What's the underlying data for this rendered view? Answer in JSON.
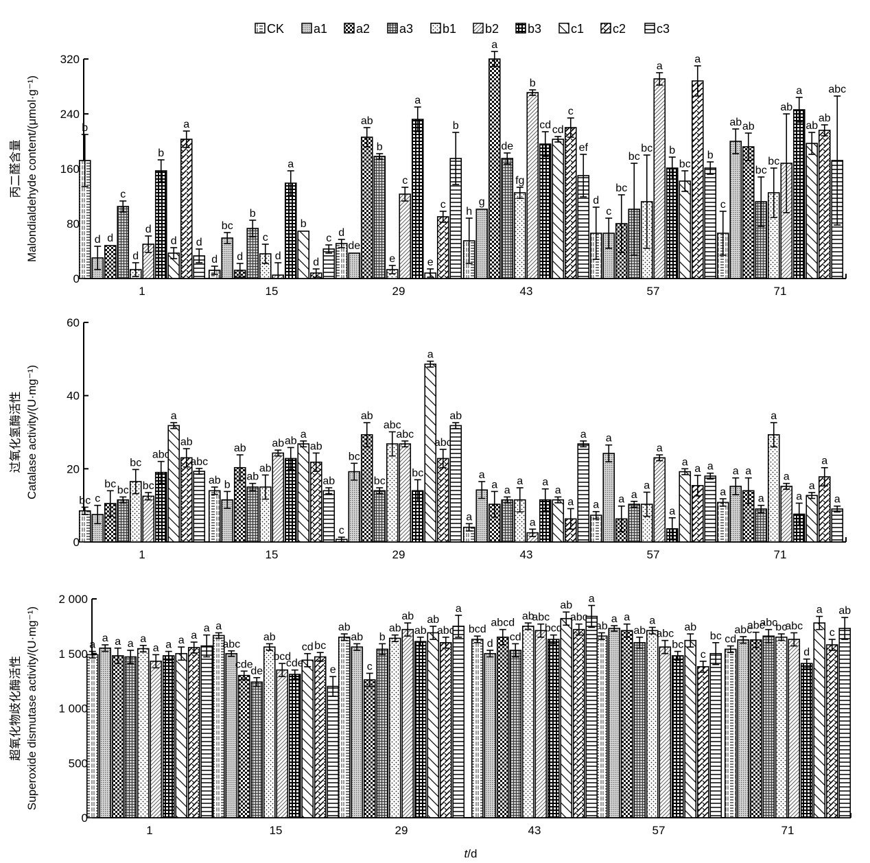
{
  "legend": [
    "CK",
    "a1",
    "a2",
    "a3",
    "b1",
    "b2",
    "b3",
    "c1",
    "c2",
    "c3"
  ],
  "patterns": [
    "hdash",
    "fine-dots",
    "checker",
    "fine-grid",
    "dots",
    "diag-fine",
    "cross-grid",
    "diag-back",
    "diag-hatch",
    "hlines"
  ],
  "xlabel": "t/d",
  "chart_data": [
    {
      "type": "bar",
      "title": "",
      "ylabel_cn": "丙二醛含量",
      "ylabel": "Malondialdehyde content/(μmol·g⁻¹)",
      "xlabel": "t/d",
      "categories": [
        "1",
        "15",
        "29",
        "43",
        "57",
        "71"
      ],
      "ylim": [
        0,
        320
      ],
      "yticks": [
        0,
        80,
        160,
        240,
        320
      ],
      "ytick_labels": [
        "0",
        "80",
        "160",
        "240",
        "320"
      ],
      "grid": false,
      "legend": "top",
      "series": [
        {
          "name": "CK",
          "values": [
            172,
            12,
            51,
            55,
            66,
            66
          ],
          "err": [
            38,
            6,
            6,
            33,
            38,
            32
          ],
          "labels": [
            "b",
            "d",
            "d",
            "h",
            "d",
            "c"
          ]
        },
        {
          "name": "a1",
          "values": [
            30,
            59,
            37,
            101,
            66,
            200
          ],
          "err": [
            17,
            8,
            0,
            0,
            22,
            18
          ],
          "labels": [
            "d",
            "bc",
            "de",
            "g",
            "c",
            "ab"
          ]
        },
        {
          "name": "a2",
          "values": [
            48,
            12,
            206,
            320,
            80,
            192
          ],
          "err": [
            0,
            10,
            14,
            11,
            42,
            20
          ],
          "labels": [
            "d",
            "d",
            "ab",
            "a",
            "bc",
            "ab"
          ]
        },
        {
          "name": "a3",
          "values": [
            105,
            73,
            178,
            175,
            101,
            112
          ],
          "err": [
            8,
            12,
            4,
            8,
            67,
            36
          ],
          "labels": [
            "c",
            "b",
            "b",
            "de",
            "bc",
            "bc"
          ]
        },
        {
          "name": "b1",
          "values": [
            13,
            36,
            13,
            125,
            112,
            125
          ],
          "err": [
            10,
            14,
            6,
            8,
            68,
            36
          ],
          "labels": [
            "d",
            "c",
            "e",
            "fg",
            "bc",
            "bc"
          ]
        },
        {
          "name": "b2",
          "values": [
            50,
            5,
            123,
            271,
            291,
            168
          ],
          "err": [
            12,
            18,
            10,
            4,
            9,
            72
          ],
          "labels": [
            "d",
            "d",
            "c",
            "b",
            "a",
            "ab"
          ]
        },
        {
          "name": "b3",
          "values": [
            157,
            139,
            232,
            196,
            161,
            246
          ],
          "err": [
            16,
            18,
            18,
            18,
            16,
            18
          ],
          "labels": [
            "b",
            "a",
            "a",
            "cd",
            "b",
            "a"
          ]
        },
        {
          "name": "c1",
          "values": [
            37,
            69,
            8,
            203,
            142,
            197
          ],
          "err": [
            8,
            0,
            6,
            4,
            15,
            16
          ],
          "labels": [
            "d",
            "b",
            "e",
            "cd",
            "bc",
            "ab"
          ]
        },
        {
          "name": "c2",
          "values": [
            203,
            8,
            90,
            220,
            288,
            216
          ],
          "err": [
            12,
            6,
            8,
            14,
            22,
            8
          ],
          "labels": [
            "a",
            "d",
            "c",
            "c",
            "a",
            "ab"
          ]
        },
        {
          "name": "c3",
          "values": [
            33,
            43,
            175,
            150,
            161,
            172
          ],
          "err": [
            10,
            6,
            38,
            31,
            9,
            94
          ],
          "labels": [
            "d",
            "c",
            "b",
            "ef",
            "b",
            "abc"
          ]
        }
      ]
    },
    {
      "type": "bar",
      "title": "",
      "ylabel_cn": "过氧化氢酶活性",
      "ylabel": "Catalase activity/(U·mg⁻¹)",
      "xlabel": "t/d",
      "categories": [
        "1",
        "15",
        "29",
        "43",
        "57",
        "71"
      ],
      "ylim": [
        0,
        60
      ],
      "yticks": [
        0,
        20,
        40,
        60
      ],
      "ytick_labels": [
        "0",
        "20",
        "40",
        "60"
      ],
      "grid": false,
      "legend": "top",
      "series": [
        {
          "name": "CK",
          "values": [
            8.5,
            14.0,
            0.7,
            4.0,
            7.3,
            10.8
          ],
          "err": [
            1.0,
            1.0,
            0.6,
            1.0,
            1.0,
            1.0
          ],
          "labels": [
            "bc",
            "ab",
            "c",
            "a",
            "a",
            "a"
          ]
        },
        {
          "name": "a1",
          "values": [
            7.5,
            11.5,
            19.2,
            14.2,
            24.2,
            15.2
          ],
          "err": [
            2.5,
            2.3,
            2.3,
            2.3,
            2.3,
            2.3
          ],
          "labels": [
            "c",
            "b",
            "bc",
            "a",
            "a",
            "a"
          ]
        },
        {
          "name": "a2",
          "values": [
            10.5,
            20.3,
            29.3,
            10.3,
            6.3,
            14.0
          ],
          "err": [
            3.5,
            3.5,
            3.3,
            3.5,
            3.5,
            3.5
          ],
          "labels": [
            "bc",
            "ab",
            "ab",
            "a",
            "a",
            "a"
          ]
        },
        {
          "name": "a3",
          "values": [
            11.5,
            15.0,
            14.0,
            11.5,
            10.3,
            9.0
          ],
          "err": [
            0.8,
            1.0,
            0.8,
            0.8,
            0.8,
            1.0
          ],
          "labels": [
            "bc",
            "ab",
            "bc",
            "a",
            "a",
            "a"
          ]
        },
        {
          "name": "b1",
          "values": [
            16.5,
            15.0,
            26.8,
            11.5,
            10.3,
            29.3
          ],
          "err": [
            3.3,
            3.3,
            3.3,
            3.3,
            3.3,
            3.3
          ],
          "labels": [
            "bc",
            "ab",
            "abc",
            "a",
            "a",
            "a"
          ]
        },
        {
          "name": "b2",
          "values": [
            12.5,
            24.3,
            26.8,
            2.5,
            23.0,
            15.2
          ],
          "err": [
            1.0,
            0.8,
            0.8,
            1.0,
            0.8,
            0.8
          ],
          "labels": [
            "bc",
            "ab",
            "abc",
            "a",
            "a",
            "a"
          ]
        },
        {
          "name": "b3",
          "values": [
            19.0,
            22.8,
            14.0,
            11.5,
            3.6,
            7.6
          ],
          "err": [
            3.0,
            3.0,
            3.0,
            3.0,
            3.0,
            3.0
          ],
          "labels": [
            "abc",
            "ab",
            "bc",
            "a",
            "a",
            "a"
          ]
        },
        {
          "name": "c1",
          "values": [
            31.8,
            26.8,
            48.6,
            11.5,
            19.2,
            12.7
          ],
          "err": [
            0.8,
            0.8,
            0.8,
            0.8,
            0.8,
            0.8
          ],
          "labels": [
            "a",
            "a",
            "a",
            "a",
            "a",
            "a"
          ]
        },
        {
          "name": "c2",
          "values": [
            23.0,
            21.8,
            22.8,
            6.3,
            15.4,
            17.8
          ],
          "err": [
            2.5,
            2.5,
            2.5,
            2.8,
            2.8,
            2.5
          ],
          "labels": [
            "ab",
            "ab",
            "abc",
            "a",
            "a",
            "a"
          ]
        },
        {
          "name": "c3",
          "values": [
            19.3,
            14.0,
            31.8,
            26.8,
            18.0,
            9.0
          ],
          "err": [
            0.8,
            0.8,
            0.8,
            0.8,
            0.8,
            0.8
          ],
          "labels": [
            "abc",
            "ab",
            "ab",
            "a",
            "a",
            "a"
          ]
        }
      ]
    },
    {
      "type": "bar",
      "title": "",
      "ylabel_cn": "超氧化物歧化酶活性",
      "ylabel": "Superoxide dismutase activity/(U·mg⁻¹)",
      "xlabel": "t/d",
      "categories": [
        "1",
        "15",
        "29",
        "43",
        "57",
        "71"
      ],
      "ylim": [
        0,
        2000
      ],
      "yticks": [
        0,
        500,
        1000,
        1500,
        2000
      ],
      "ytick_labels": [
        "0",
        "500",
        "1 000",
        "1 500",
        "2 000"
      ],
      "grid": false,
      "legend": "top",
      "series": [
        {
          "name": "CK",
          "values": [
            1490,
            1665,
            1650,
            1630,
            1660,
            1540
          ],
          "err": [
            30,
            25,
            30,
            30,
            30,
            30
          ],
          "labels": [
            "a",
            "a",
            "ab",
            "bcd",
            "ab",
            "cd"
          ]
        },
        {
          "name": "a1",
          "values": [
            1550,
            1500,
            1560,
            1500,
            1730,
            1625
          ],
          "err": [
            30,
            25,
            30,
            30,
            25,
            30
          ],
          "labels": [
            "a",
            "abc",
            "ab",
            "d",
            "a",
            "abc"
          ]
        },
        {
          "name": "a2",
          "values": [
            1480,
            1300,
            1260,
            1650,
            1710,
            1625
          ],
          "err": [
            70,
            40,
            60,
            70,
            60,
            70
          ],
          "labels": [
            "a",
            "cde",
            "c",
            "abcd",
            "a",
            "abc"
          ]
        },
        {
          "name": "a3",
          "values": [
            1470,
            1240,
            1540,
            1530,
            1600,
            1660
          ],
          "err": [
            60,
            40,
            50,
            60,
            50,
            60
          ],
          "labels": [
            "a",
            "de",
            "b",
            "cd",
            "ab",
            "abc"
          ]
        },
        {
          "name": "b1",
          "values": [
            1545,
            1560,
            1640,
            1750,
            1710,
            1650
          ],
          "err": [
            30,
            30,
            30,
            30,
            30,
            30
          ],
          "labels": [
            "a",
            "ab",
            "ab",
            "ab",
            "a",
            "bc"
          ]
        },
        {
          "name": "b2",
          "values": [
            1430,
            1350,
            1720,
            1710,
            1560,
            1630
          ],
          "err": [
            60,
            60,
            60,
            60,
            60,
            60
          ],
          "labels": [
            "a",
            "bcd",
            "ab",
            "abc",
            "abc",
            "abc"
          ]
        },
        {
          "name": "b3",
          "values": [
            1480,
            1310,
            1610,
            1630,
            1480,
            1410
          ],
          "err": [
            40,
            40,
            40,
            40,
            40,
            40
          ],
          "labels": [
            "a",
            "cde",
            "ab",
            "bcd",
            "bc",
            "d"
          ]
        },
        {
          "name": "c1",
          "values": [
            1500,
            1440,
            1690,
            1820,
            1620,
            1780
          ],
          "err": [
            60,
            60,
            60,
            60,
            60,
            60
          ],
          "labels": [
            "a",
            "cd",
            "ab",
            "ab",
            "ab",
            "a"
          ]
        },
        {
          "name": "c2",
          "values": [
            1555,
            1470,
            1600,
            1720,
            1380,
            1580
          ],
          "err": [
            50,
            40,
            50,
            50,
            50,
            50
          ],
          "labels": [
            "a",
            "bc",
            "abc",
            "abc",
            "c",
            "c"
          ]
        },
        {
          "name": "c3",
          "values": [
            1570,
            1200,
            1750,
            1840,
            1500,
            1730
          ],
          "err": [
            100,
            90,
            100,
            100,
            100,
            100
          ],
          "labels": [
            "a",
            "e",
            "a",
            "a",
            "bc",
            "ab"
          ]
        }
      ]
    }
  ]
}
